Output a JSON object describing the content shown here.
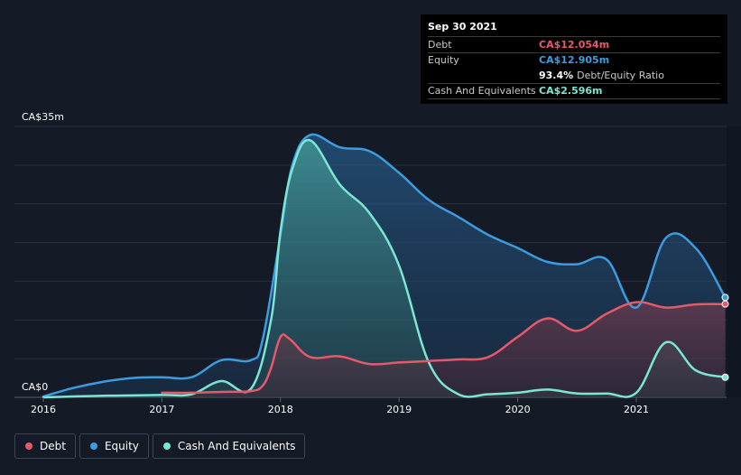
{
  "chart_data": {
    "type": "area",
    "title": "",
    "y_top_label": "CA$35m",
    "y_bottom_label": "CA$0",
    "ylim": [
      0,
      35
    ],
    "xlim": [
      2016,
      2021.77
    ],
    "x_ticks": [
      "2016",
      "2017",
      "2018",
      "2019",
      "2020",
      "2021"
    ],
    "series": [
      {
        "name": "Debt",
        "color": "#e45a6b",
        "points": [
          [
            2017.0,
            0.6
          ],
          [
            2017.25,
            0.6
          ],
          [
            2017.5,
            0.7
          ],
          [
            2017.75,
            0.8
          ],
          [
            2017.85,
            1.5
          ],
          [
            2017.92,
            3.8
          ],
          [
            2018.0,
            7.8
          ],
          [
            2018.08,
            7.5
          ],
          [
            2018.25,
            5.2
          ],
          [
            2018.5,
            5.3
          ],
          [
            2018.75,
            4.3
          ],
          [
            2019.0,
            4.5
          ],
          [
            2019.25,
            4.7
          ],
          [
            2019.5,
            4.9
          ],
          [
            2019.75,
            5.2
          ],
          [
            2020.0,
            7.8
          ],
          [
            2020.25,
            10.2
          ],
          [
            2020.5,
            8.6
          ],
          [
            2020.75,
            10.8
          ],
          [
            2021.0,
            12.3
          ],
          [
            2021.25,
            11.6
          ],
          [
            2021.5,
            12.0
          ],
          [
            2021.75,
            12.054
          ]
        ]
      },
      {
        "name": "Equity",
        "color": "#3d9be0",
        "points": [
          [
            2016.0,
            0.1
          ],
          [
            2016.25,
            1.2
          ],
          [
            2016.5,
            2.0
          ],
          [
            2016.75,
            2.5
          ],
          [
            2017.0,
            2.6
          ],
          [
            2017.25,
            2.6
          ],
          [
            2017.5,
            4.8
          ],
          [
            2017.75,
            4.8
          ],
          [
            2017.85,
            7.5
          ],
          [
            2018.0,
            21.0
          ],
          [
            2018.1,
            30.0
          ],
          [
            2018.25,
            33.9
          ],
          [
            2018.5,
            32.3
          ],
          [
            2018.75,
            31.8
          ],
          [
            2019.0,
            29.0
          ],
          [
            2019.25,
            25.5
          ],
          [
            2019.5,
            23.3
          ],
          [
            2019.75,
            21.0
          ],
          [
            2020.0,
            19.3
          ],
          [
            2020.25,
            17.5
          ],
          [
            2020.5,
            17.2
          ],
          [
            2020.75,
            17.8
          ],
          [
            2021.0,
            11.6
          ],
          [
            2021.25,
            20.6
          ],
          [
            2021.5,
            19.3
          ],
          [
            2021.75,
            12.905
          ]
        ]
      },
      {
        "name": "Cash And Equivalents",
        "color": "#7ce6d4",
        "points": [
          [
            2016.0,
            0.0
          ],
          [
            2016.5,
            0.2
          ],
          [
            2017.0,
            0.3
          ],
          [
            2017.25,
            0.4
          ],
          [
            2017.5,
            2.1
          ],
          [
            2017.75,
            1.1
          ],
          [
            2017.92,
            10.0
          ],
          [
            2018.0,
            21.5
          ],
          [
            2018.1,
            29.5
          ],
          [
            2018.25,
            33.2
          ],
          [
            2018.5,
            27.5
          ],
          [
            2018.75,
            23.8
          ],
          [
            2019.0,
            17.0
          ],
          [
            2019.25,
            4.5
          ],
          [
            2019.5,
            0.4
          ],
          [
            2019.75,
            0.4
          ],
          [
            2020.0,
            0.6
          ],
          [
            2020.25,
            1.0
          ],
          [
            2020.5,
            0.5
          ],
          [
            2020.75,
            0.5
          ],
          [
            2021.0,
            0.6
          ],
          [
            2021.25,
            7.1
          ],
          [
            2021.5,
            3.5
          ],
          [
            2021.75,
            2.596
          ]
        ]
      }
    ]
  },
  "tooltip": {
    "date": "Sep 30 2021",
    "debt_label": "Debt",
    "debt_value": "CA$12.054m",
    "equity_label": "Equity",
    "equity_value": "CA$12.905m",
    "ratio_value": "93.4%",
    "ratio_label": "Debt/Equity Ratio",
    "cash_label": "Cash And Equivalents",
    "cash_value": "CA$2.596m"
  },
  "legend": [
    {
      "label": "Debt",
      "color": "#e45a6b"
    },
    {
      "label": "Equity",
      "color": "#3d9be0"
    },
    {
      "label": "Cash And Equivalents",
      "color": "#7ce6d4"
    }
  ],
  "colors": {
    "background": "#151b26",
    "debt": "#e45a6b",
    "equity": "#3d9be0",
    "cash": "#7ce6d4"
  }
}
